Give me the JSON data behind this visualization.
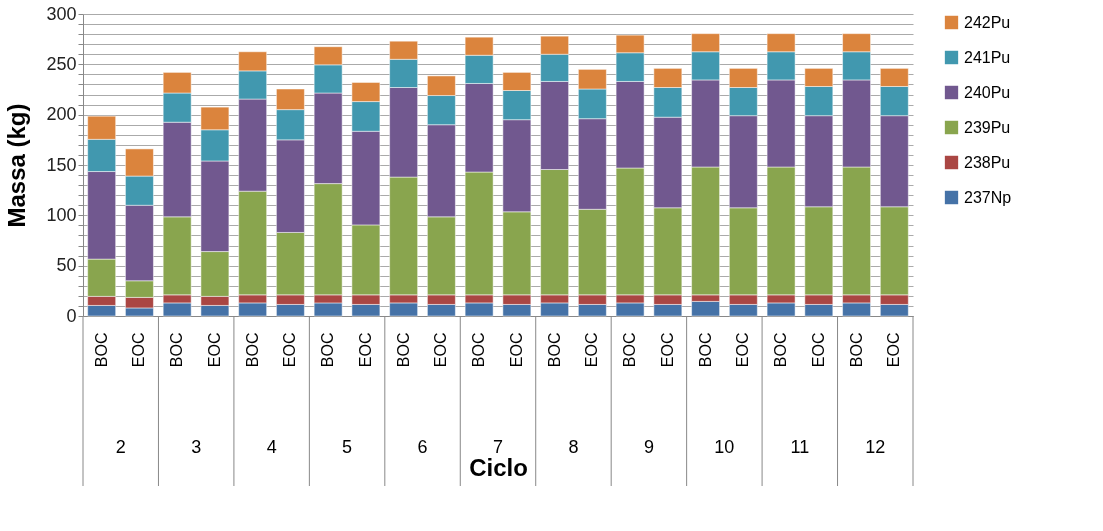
{
  "chart_data": {
    "type": "bar",
    "stacked": true,
    "xlabel": "Ciclo",
    "ylabel": "Massa (kg)",
    "categories": [
      "BOC",
      "EOC",
      "BOC",
      "EOC",
      "BOC",
      "EOC",
      "BOC",
      "EOC",
      "BOC",
      "EOC",
      "BOC",
      "EOC",
      "BOC",
      "EOC",
      "BOC",
      "EOC",
      "BOC",
      "EOC",
      "BOC",
      "EOC",
      "BOC",
      "EOC"
    ],
    "annotations": [
      "2",
      "3",
      "4",
      "5",
      "6",
      "7",
      "8",
      "9",
      "10",
      "11",
      "12"
    ],
    "series": [
      {
        "name": "237Np",
        "color": "#4572a7",
        "values": [
          10.5,
          8,
          13,
          10.5,
          13,
          11.5,
          13,
          11.5,
          13,
          11.5,
          13,
          11.5,
          13,
          11.5,
          13,
          11.5,
          14.5,
          11.5,
          13,
          11.5,
          13,
          11.5
        ]
      },
      {
        "name": "238Pu",
        "color": "#aa4643",
        "values": [
          9,
          10.5,
          8,
          9,
          8,
          9.5,
          8,
          9.5,
          8,
          9.5,
          8,
          9.5,
          8,
          9.5,
          8,
          9.5,
          6.5,
          9.5,
          8,
          9.5,
          8,
          9.5
        ]
      },
      {
        "name": "239Pu",
        "color": "#89a54e",
        "values": [
          37,
          16.5,
          77.5,
          44.5,
          103,
          62,
          110.5,
          69.5,
          117,
          77.5,
          122,
          82.5,
          124.5,
          85,
          126,
          86.5,
          127,
          86.5,
          127,
          87.5,
          127,
          87.5
        ]
      },
      {
        "name": "240Pu",
        "color": "#71588f",
        "values": [
          87,
          75,
          94,
          90,
          91.5,
          92,
          90,
          93,
          89,
          91.5,
          88,
          91.5,
          87.5,
          90,
          86,
          90,
          86.5,
          91.5,
          86.5,
          90.5,
          86.5,
          90.5
        ]
      },
      {
        "name": "241Pu",
        "color": "#4198af",
        "values": [
          32,
          29,
          29,
          31,
          28,
          30,
          28,
          29.5,
          28,
          29,
          28,
          29,
          27,
          29.5,
          28.5,
          29.5,
          28,
          28,
          28,
          29,
          28,
          29
        ]
      },
      {
        "name": "242Pu",
        "color": "#db843d",
        "values": [
          23,
          27,
          20.5,
          22.5,
          19,
          20.5,
          18,
          19,
          18,
          19.5,
          18,
          18,
          18,
          19.5,
          17.5,
          19,
          18,
          19,
          18,
          18,
          18,
          18
        ]
      }
    ],
    "ylim": [
      0,
      300
    ],
    "yticks": [
      0,
      {
        "value": 10,
        "label": null
      },
      {
        "value": 20,
        "label": null
      },
      {
        "value": 30,
        "label": null
      },
      {
        "value": 40,
        "label": null
      },
      50,
      {
        "value": 60,
        "label": null
      },
      {
        "value": 70,
        "label": null
      },
      {
        "value": 80,
        "label": null
      },
      {
        "value": 90,
        "label": null
      },
      100,
      {
        "value": 110,
        "label": null
      },
      {
        "value": 120,
        "label": null
      },
      {
        "value": 130,
        "label": null
      },
      {
        "value": 140,
        "label": null
      },
      150,
      {
        "value": 160,
        "label": null
      },
      {
        "value": 170,
        "label": null
      },
      {
        "value": 180,
        "label": null
      },
      {
        "value": 190,
        "label": null
      },
      200,
      {
        "value": 210,
        "label": null
      },
      {
        "value": 220,
        "label": null
      },
      {
        "value": 230,
        "label": null
      },
      {
        "value": 240,
        "label": null
      },
      250,
      {
        "value": 260,
        "label": null
      },
      {
        "value": 270,
        "label": null
      },
      {
        "value": 280,
        "label": null
      },
      {
        "value": 290,
        "label": null
      },
      300
    ],
    "grid": "y",
    "legend": "right"
  }
}
